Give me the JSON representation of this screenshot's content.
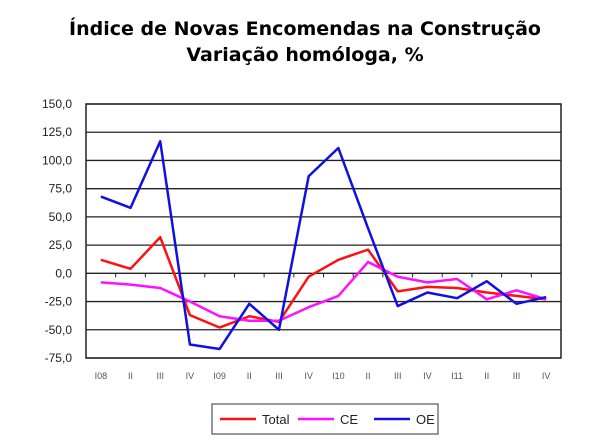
{
  "chart_data": {
    "type": "line",
    "title": "Índice de Novas Encomendas na Construção",
    "subtitle": "Variação homóloga, %",
    "categories": [
      "I08",
      "II",
      "III",
      "IV",
      "I09",
      "II",
      "III",
      "IV",
      "I10",
      "II",
      "III",
      "IV",
      "I11",
      "II",
      "III",
      "IV"
    ],
    "ylim": [
      -75,
      150
    ],
    "yticks": [
      "150,0",
      "125,0",
      "100,0",
      "75,0",
      "50,0",
      "25,0",
      "0,0",
      "-25,0",
      "-50,0",
      "-75,0"
    ],
    "ytick_values": [
      150,
      125,
      100,
      75,
      50,
      25,
      0,
      -25,
      -50,
      -75
    ],
    "grid": true,
    "legend": "bottom",
    "series": [
      {
        "name": "Total",
        "color": "#ff1010",
        "values": [
          12,
          4,
          32,
          -37,
          -48,
          -38,
          -43,
          -3,
          12,
          21,
          -16,
          -12,
          -13,
          -17,
          -20,
          -23
        ]
      },
      {
        "name": "CE",
        "color": "#ff10ff",
        "values": [
          -8,
          -10,
          -13,
          -25,
          -38,
          -42,
          -42,
          -30,
          -20,
          10,
          -3,
          -8,
          -5,
          -23,
          -15,
          -23
        ]
      },
      {
        "name": "OE",
        "color": "#1010e0",
        "values": [
          68,
          58,
          117,
          -63,
          -67,
          -27,
          -50,
          86,
          111,
          40,
          -29,
          -17,
          -22,
          -7,
          -27,
          -21
        ]
      }
    ]
  }
}
